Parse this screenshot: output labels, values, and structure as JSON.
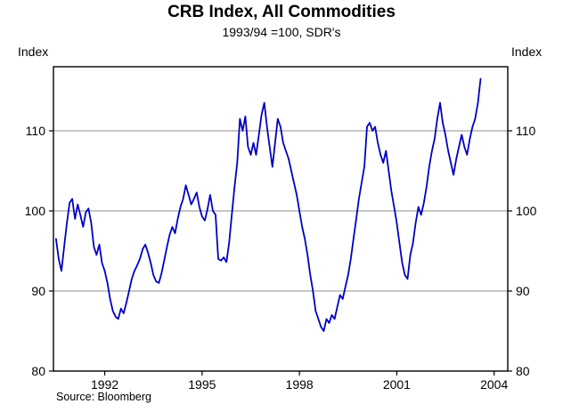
{
  "page": {
    "title": "CRB Index, All Commodities",
    "subtitle": "1993/94 =100, SDR's",
    "y_axis_label_left": "Index",
    "y_axis_label_right": "Index",
    "source": "Source: Bloomberg"
  },
  "chart_data": {
    "type": "line",
    "title": "CRB Index, All Commodities",
    "subtitle": "1993/94 =100, SDR's",
    "ylabel": "Index",
    "source": "Source: Bloomberg",
    "line_color": "#0000c0",
    "grid_color": "#8c8c8c",
    "frame_color": "#000000",
    "xlim": [
      1990.42,
      2004.42
    ],
    "ylim": [
      80,
      118
    ],
    "yticks": [
      80,
      90,
      100,
      110
    ],
    "xticks": [
      1992,
      1995,
      1998,
      2001,
      2004
    ],
    "gridlines": [
      90,
      100,
      110
    ],
    "legend": "none",
    "x_start": 1990.5,
    "x_step_years": 0.08333,
    "values": [
      96.5,
      94.0,
      92.5,
      95.5,
      98.5,
      101.0,
      101.5,
      99.0,
      100.8,
      99.5,
      98.0,
      99.8,
      100.3,
      98.5,
      95.5,
      94.5,
      95.8,
      93.5,
      92.5,
      91.0,
      89.0,
      87.5,
      86.8,
      86.5,
      87.8,
      87.2,
      88.5,
      90.0,
      91.5,
      92.5,
      93.2,
      94.0,
      95.2,
      95.8,
      94.8,
      93.5,
      92.0,
      91.2,
      91.0,
      92.2,
      93.8,
      95.5,
      97.0,
      98.0,
      97.2,
      99.0,
      100.5,
      101.5,
      103.2,
      102.0,
      100.8,
      101.5,
      102.3,
      100.5,
      99.3,
      98.8,
      100.2,
      102.0,
      100.0,
      99.5,
      94.0,
      93.8,
      94.2,
      93.6,
      96.0,
      99.5,
      103.0,
      106.0,
      111.5,
      110.0,
      111.8,
      108.0,
      107.0,
      108.5,
      107.0,
      109.5,
      112.0,
      113.5,
      110.5,
      108.0,
      105.5,
      108.5,
      111.5,
      110.5,
      108.5,
      107.5,
      106.5,
      105.0,
      103.5,
      102.0,
      100.0,
      98.0,
      96.5,
      94.5,
      92.0,
      90.0,
      87.5,
      86.5,
      85.5,
      85.0,
      86.5,
      86.0,
      87.0,
      86.5,
      88.0,
      89.5,
      89.0,
      90.5,
      92.0,
      94.0,
      96.5,
      99.0,
      101.5,
      103.5,
      105.5,
      110.5,
      111.0,
      110.0,
      110.5,
      108.5,
      107.0,
      106.0,
      107.5,
      105.0,
      102.5,
      100.5,
      98.5,
      96.0,
      93.5,
      92.0,
      91.5,
      94.5,
      96.0,
      98.5,
      100.5,
      99.5,
      101.0,
      103.0,
      105.5,
      107.5,
      109.0,
      111.5,
      113.5,
      111.0,
      109.5,
      107.5,
      106.0,
      104.5,
      106.5,
      108.0,
      109.5,
      108.0,
      107.0,
      109.0,
      110.5,
      111.5,
      113.5,
      116.5
    ]
  }
}
